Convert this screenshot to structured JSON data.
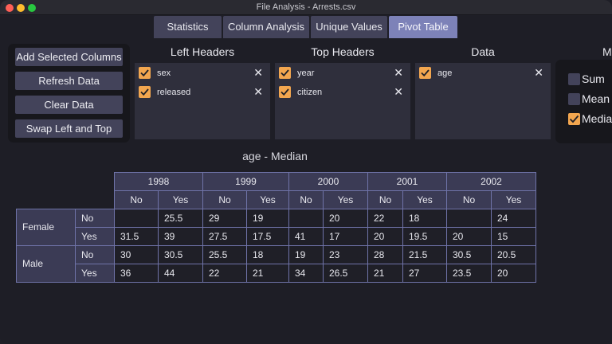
{
  "window": {
    "title": "File Analysis - Arrests.csv"
  },
  "tabs": [
    {
      "label": "Statistics",
      "active": false
    },
    {
      "label": "Column Analysis",
      "active": false
    },
    {
      "label": "Unique Values",
      "active": false
    },
    {
      "label": "Pivot Table",
      "active": true
    }
  ],
  "actions": {
    "add_selected_columns": "Add Selected Columns",
    "refresh_data": "Refresh Data",
    "clear_data": "Clear Data",
    "swap_left_top": "Swap Left and Top"
  },
  "left_headers": {
    "title": "Left Headers",
    "items": [
      {
        "label": "sex",
        "checked": true
      },
      {
        "label": "released",
        "checked": true
      }
    ]
  },
  "top_headers": {
    "title": "Top Headers",
    "items": [
      {
        "label": "year",
        "checked": true
      },
      {
        "label": "citizen",
        "checked": true
      }
    ]
  },
  "data": {
    "title": "Data",
    "items": [
      {
        "label": "age",
        "checked": true
      }
    ]
  },
  "aggregation": {
    "title": "M",
    "options": [
      {
        "label": "Sum",
        "checked": false
      },
      {
        "label": "Mean",
        "checked": false
      },
      {
        "label": "Media",
        "checked": true
      }
    ]
  },
  "pivot": {
    "title": "age - Median",
    "years": [
      "1998",
      "1999",
      "2000",
      "2001",
      "2002"
    ],
    "citizen": [
      "No",
      "Yes"
    ],
    "sex": [
      "Female",
      "Male"
    ],
    "released": [
      "No",
      "Yes"
    ],
    "rows": [
      [
        "",
        "25.5",
        "29",
        "19",
        "",
        "20",
        "22",
        "18",
        "",
        "24"
      ],
      [
        "31.5",
        "39",
        "27.5",
        "17.5",
        "41",
        "17",
        "20",
        "19.5",
        "20",
        "15"
      ],
      [
        "30",
        "30.5",
        "25.5",
        "18",
        "19",
        "23",
        "28",
        "21.5",
        "30.5",
        "20.5"
      ],
      [
        "36",
        "44",
        "22",
        "21",
        "34",
        "26.5",
        "21",
        "27",
        "23.5",
        "20"
      ]
    ]
  },
  "colors": {
    "accent": "#7d82b8",
    "checkbox": "#f2a64f",
    "panel": "#2f2f3c",
    "header_cell": "#3b3b55"
  }
}
